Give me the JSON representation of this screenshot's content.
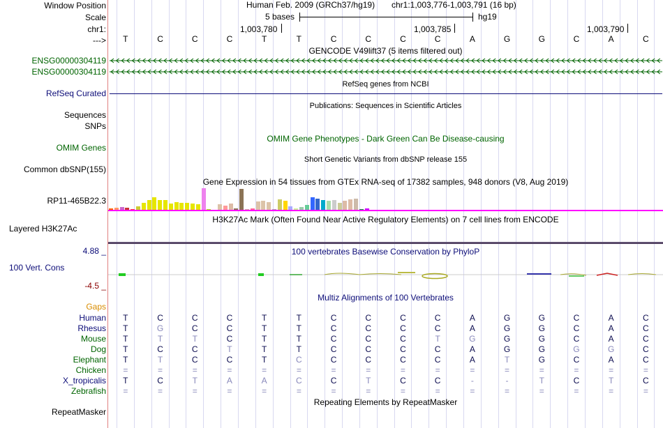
{
  "labels": {
    "window_position": "Window Position",
    "scale": "Scale",
    "chr": "chr1:",
    "arrow": "--->",
    "ens1": "ENSG00000304119",
    "ens2": "ENSG00000304119",
    "refseq": "RefSeq Curated",
    "sequences": "Sequences",
    "snps": "SNPs",
    "omim": "OMIM Genes",
    "dbsnp": "Common dbSNP(155)",
    "gtex_gene": "RP11-465B22.3",
    "h3k27ac": "Layered H3K27Ac",
    "cons_max": "4.88 _",
    "cons": "100 Vert. Cons",
    "cons_min": "-4.5 _",
    "gaps": "Gaps"
  },
  "header": {
    "assembly": "Human Feb. 2009 (GRCh37/hg19)",
    "position": "chr1:1,003,776-1,003,791 (16 bp)",
    "scale_text": "5 bases",
    "db": "hg19",
    "coords": [
      "1,003,780",
      "1,003,785",
      "1,003,790"
    ]
  },
  "sequence": [
    "T",
    "C",
    "C",
    "C",
    "T",
    "T",
    "C",
    "C",
    "C",
    "C",
    "A",
    "G",
    "G",
    "C",
    "A",
    "C"
  ],
  "tracks": {
    "gencode": "GENCODE V49lift37 (5 items filtered out)",
    "refseq": "RefSeq genes from NCBI",
    "publications": "Publications: Sequences in Scientific Articles",
    "omim": "OMIM Gene Phenotypes - Dark Green Can Be Disease-causing",
    "dbsnp": "Short Genetic Variants from dbSNP release 155",
    "gtex": "Gene Expression in 54 tissues from GTEx RNA-seq of 17382 samples, 948 donors (V8, Aug 2019)",
    "h3k27ac": "H3K27Ac Mark (Often Found Near Active Regulatory Elements) on 7 cell lines from ENCODE",
    "phylop": "100 vertebrates Basewise Conservation by PhyloP",
    "multiz": "Multiz Alignments of 100 Vertebrates",
    "repeatmasker_title": "Repeating Elements by RepeatMasker",
    "repeatmasker_label": "RepeatMasker"
  },
  "gtex_values": [
    3,
    4,
    5,
    4,
    2,
    6,
    11,
    15,
    19,
    15,
    15,
    10,
    12,
    11,
    11,
    10,
    9,
    32,
    2,
    1,
    9,
    7,
    10,
    3,
    31,
    2,
    3,
    13,
    14,
    12,
    2,
    16,
    14,
    6,
    3,
    5,
    8,
    19,
    17,
    15,
    14,
    15,
    11,
    14,
    16,
    17,
    2,
    3
  ],
  "gtex_colors": [
    "#ff6600",
    "#ff9966",
    "#cc66cc",
    "#cc3333",
    "#ff3333",
    "#cccc33",
    "#e6e600",
    "#e6e600",
    "#e6e600",
    "#e6e600",
    "#e6e600",
    "#e6e600",
    "#e6e600",
    "#e6e600",
    "#e6e600",
    "#e6e600",
    "#e6e600",
    "#ee82ee",
    "#99ff00",
    "#66ff99",
    "#dcc3a8",
    "#ff9999",
    "#ddbba6",
    "#8b7355",
    "#8b7355",
    "#ccb299",
    "#ff6699",
    "#dcc3a8",
    "#dcc3a8",
    "#dcc3a8",
    "#aaaaaa",
    "#cccc66",
    "#ffd700",
    "#aaaaff",
    "#ccee99",
    "#99ccaa",
    "#66cc99",
    "#3366ff",
    "#3366cc",
    "#00aacc",
    "#aaddaa",
    "#cccccc",
    "#cccc99",
    "#ddbba6",
    "#ddbba6",
    "#ccbbaa",
    "#009933",
    "#cc00ff"
  ],
  "species": [
    {
      "name": "Human",
      "bases": [
        "T",
        "C",
        "C",
        "C",
        "T",
        "T",
        "C",
        "C",
        "C",
        "C",
        "A",
        "G",
        "G",
        "C",
        "A",
        "C"
      ],
      "dim": [
        0,
        0,
        0,
        0,
        0,
        0,
        0,
        0,
        0,
        0,
        0,
        0,
        0,
        0,
        0,
        0
      ]
    },
    {
      "name": "Rhesus",
      "bases": [
        "T",
        "G",
        "C",
        "C",
        "T",
        "T",
        "C",
        "C",
        "C",
        "C",
        "A",
        "G",
        "G",
        "C",
        "A",
        "C"
      ],
      "dim": [
        0,
        1,
        0,
        0,
        0,
        0,
        0,
        0,
        0,
        0,
        0,
        0,
        0,
        0,
        0,
        0
      ]
    },
    {
      "name": "Mouse",
      "bases": [
        "T",
        "T",
        "T",
        "C",
        "T",
        "T",
        "C",
        "C",
        "C",
        "T",
        "G",
        "G",
        "G",
        "C",
        "A",
        "C"
      ],
      "dim": [
        0,
        1,
        1,
        0,
        0,
        0,
        0,
        0,
        0,
        1,
        1,
        0,
        0,
        0,
        0,
        0
      ]
    },
    {
      "name": "Dog",
      "bases": [
        "T",
        "C",
        "C",
        "T",
        "T",
        "T",
        "C",
        "C",
        "C",
        "C",
        "A",
        "G",
        "G",
        "G",
        "G",
        "C"
      ],
      "dim": [
        0,
        0,
        0,
        1,
        0,
        0,
        0,
        0,
        0,
        0,
        0,
        0,
        0,
        1,
        1,
        0
      ]
    },
    {
      "name": "Elephant",
      "bases": [
        "T",
        "T",
        "C",
        "C",
        "T",
        "C",
        "C",
        "C",
        "C",
        "C",
        "A",
        "T",
        "G",
        "C",
        "A",
        "C"
      ],
      "dim": [
        0,
        1,
        0,
        0,
        0,
        1,
        0,
        0,
        0,
        0,
        0,
        1,
        0,
        0,
        0,
        0
      ]
    },
    {
      "name": "Chicken",
      "bases": [
        "=",
        "=",
        "=",
        "=",
        "=",
        "=",
        "=",
        "=",
        "=",
        "=",
        "=",
        "=",
        "=",
        "=",
        "=",
        "="
      ],
      "dim": [
        1,
        1,
        1,
        1,
        1,
        1,
        1,
        1,
        1,
        1,
        1,
        1,
        1,
        1,
        1,
        1
      ]
    },
    {
      "name": "X_tropicalis",
      "bases": [
        "T",
        "C",
        "T",
        "A",
        "A",
        "C",
        "C",
        "T",
        "C",
        "C",
        "-",
        "-",
        "T",
        "C",
        "T",
        "C"
      ],
      "dim": [
        0,
        0,
        1,
        1,
        1,
        1,
        0,
        1,
        0,
        0,
        1,
        1,
        1,
        0,
        1,
        0
      ]
    },
    {
      "name": "Zebrafish",
      "bases": [
        "=",
        "=",
        "=",
        "=",
        "=",
        "=",
        "=",
        "=",
        "=",
        "=",
        "=",
        "=",
        "=",
        "=",
        "=",
        "="
      ],
      "dim": [
        1,
        1,
        1,
        1,
        1,
        1,
        1,
        1,
        1,
        1,
        1,
        1,
        1,
        1,
        1,
        1
      ]
    }
  ],
  "colors": {
    "green": "#006400",
    "navy": "#0c0c78",
    "consmin": "#8b0000",
    "gaps": "#d98c00",
    "magenta": "#ff00ff"
  }
}
